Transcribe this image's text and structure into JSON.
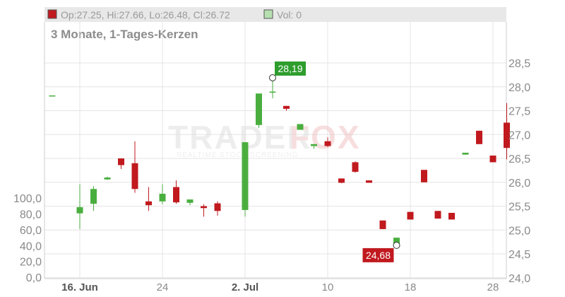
{
  "header": {
    "ohlc_text": "Op:27.25, Hi:27.66, Lo:26.48, Cl:26.72",
    "vol_text": "Vol: 0"
  },
  "subtitle": "3 Monate, 1-Tages-Kerzen",
  "watermark": {
    "brand_left": "TRADER",
    "brand_right": "FOX",
    "tagline": "REALTIME STOCK SCREENING"
  },
  "colors": {
    "up": "#4aae3f",
    "down": "#c0191e",
    "grid": "#e4e4e4",
    "header_bg": "#e8e8e8",
    "high_label_bg": "#2e9d2e",
    "low_label_bg": "#c0191e"
  },
  "chart_data": {
    "type": "candlestick",
    "price_axis": {
      "range": [
        23.8,
        28.9
      ],
      "ticks": [
        24.0,
        24.5,
        25.0,
        25.5,
        26.0,
        26.5,
        27.0,
        27.5,
        28.0,
        28.5
      ],
      "tick_labels": [
        "24,0",
        "24,5",
        "25,0",
        "25,5",
        "26,0",
        "26,5",
        "27,0",
        "27,5",
        "28,0",
        "28,5"
      ]
    },
    "volume_axis": {
      "range": [
        0,
        120
      ],
      "ticks": [
        0,
        20,
        40,
        60,
        80,
        100
      ],
      "tick_labels": [
        "0,0",
        "20,0",
        "40,0",
        "60,0",
        "80,0",
        "100,0"
      ]
    },
    "x_axis": {
      "labels": [
        {
          "index": 2,
          "text": "16. Jun",
          "bold": true
        },
        {
          "index": 8,
          "text": "24",
          "bold": false
        },
        {
          "index": 14,
          "text": "2. Jul",
          "bold": true
        },
        {
          "index": 20,
          "text": "10",
          "bold": false
        },
        {
          "index": 26,
          "text": "18",
          "bold": false
        },
        {
          "index": 32,
          "text": "28",
          "bold": false
        }
      ]
    },
    "candles": [
      {
        "index": 0,
        "open": 27.82,
        "high": 27.82,
        "low": 27.82,
        "close": 27.82
      },
      {
        "index": 2,
        "open": 25.35,
        "high": 25.96,
        "low": 25.02,
        "close": 25.48
      },
      {
        "index": 3,
        "open": 25.55,
        "high": 25.92,
        "low": 25.4,
        "close": 25.86
      },
      {
        "index": 4,
        "open": 26.06,
        "high": 26.12,
        "low": 26.05,
        "close": 26.1
      },
      {
        "index": 5,
        "open": 26.5,
        "high": 26.5,
        "low": 26.28,
        "close": 26.36
      },
      {
        "index": 6,
        "open": 26.4,
        "high": 26.86,
        "low": 25.78,
        "close": 25.86
      },
      {
        "index": 7,
        "open": 25.6,
        "high": 25.9,
        "low": 25.4,
        "close": 25.52
      },
      {
        "index": 8,
        "open": 25.6,
        "high": 25.96,
        "low": 25.54,
        "close": 25.76
      },
      {
        "index": 9,
        "open": 25.9,
        "high": 26.04,
        "low": 25.55,
        "close": 25.58
      },
      {
        "index": 10,
        "open": 25.57,
        "high": 25.64,
        "low": 25.52,
        "close": 25.64
      },
      {
        "index": 11,
        "open": 25.5,
        "high": 25.54,
        "low": 25.28,
        "close": 25.46
      },
      {
        "index": 12,
        "open": 25.56,
        "high": 25.6,
        "low": 25.3,
        "close": 25.4
      },
      {
        "index": 14,
        "open": 25.42,
        "high": 26.84,
        "low": 25.28,
        "close": 26.84
      },
      {
        "index": 15,
        "open": 27.2,
        "high": 27.86,
        "low": 27.14,
        "close": 27.86
      },
      {
        "index": 16,
        "open": 27.9,
        "high": 28.19,
        "low": 27.76,
        "close": 27.9
      },
      {
        "index": 17,
        "open": 27.6,
        "high": 27.6,
        "low": 27.5,
        "close": 27.54
      },
      {
        "index": 18,
        "open": 27.1,
        "high": 27.22,
        "low": 27.1,
        "close": 27.22
      },
      {
        "index": 19,
        "open": 26.76,
        "high": 26.8,
        "low": 26.7,
        "close": 26.8
      },
      {
        "index": 20,
        "open": 26.86,
        "high": 26.94,
        "low": 26.74,
        "close": 26.76
      },
      {
        "index": 21,
        "open": 26.08,
        "high": 26.08,
        "low": 25.98,
        "close": 25.99
      },
      {
        "index": 22,
        "open": 26.42,
        "high": 26.44,
        "low": 26.2,
        "close": 26.22
      },
      {
        "index": 23,
        "open": 26.04,
        "high": 26.04,
        "low": 25.99,
        "close": 25.99
      },
      {
        "index": 24,
        "open": 25.2,
        "high": 25.2,
        "low": 25.02,
        "close": 25.02
      },
      {
        "index": 25,
        "open": 24.68,
        "high": 24.84,
        "low": 24.68,
        "close": 24.84
      },
      {
        "index": 26,
        "open": 25.38,
        "high": 25.38,
        "low": 25.22,
        "close": 25.22
      },
      {
        "index": 27,
        "open": 26.26,
        "high": 26.26,
        "low": 26.0,
        "close": 26.0
      },
      {
        "index": 28,
        "open": 25.4,
        "high": 25.4,
        "low": 25.24,
        "close": 25.24
      },
      {
        "index": 29,
        "open": 25.36,
        "high": 25.36,
        "low": 25.22,
        "close": 25.22
      },
      {
        "index": 30,
        "open": 26.58,
        "high": 26.62,
        "low": 26.58,
        "close": 26.62
      },
      {
        "index": 31,
        "open": 27.08,
        "high": 27.08,
        "low": 26.8,
        "close": 26.8
      },
      {
        "index": 32,
        "open": 26.56,
        "high": 26.56,
        "low": 26.42,
        "close": 26.42
      },
      {
        "index": 33,
        "open": 27.25,
        "high": 27.66,
        "low": 26.48,
        "close": 26.72
      }
    ],
    "annotations": [
      {
        "index": 16,
        "price": 28.19,
        "text": "28,19",
        "kind": "high"
      },
      {
        "index": 25,
        "price": 24.68,
        "text": "24,68",
        "kind": "low"
      }
    ]
  }
}
